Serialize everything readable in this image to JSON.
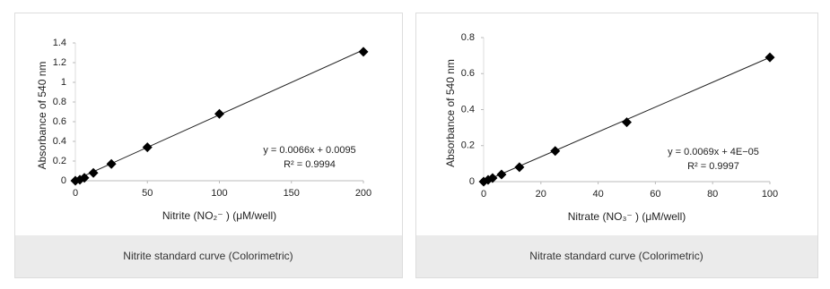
{
  "chart_data": [
    {
      "type": "scatter",
      "caption": "Nitrite standard curve (Colorimetric)",
      "x_label": "Nitrite (NO₂⁻ ) (μM/well)",
      "y_label": "Absorbance of 540 nm",
      "x": [
        0,
        3.125,
        6.25,
        12.5,
        25,
        50,
        100,
        200
      ],
      "values": [
        0,
        0.01,
        0.03,
        0.08,
        0.17,
        0.34,
        0.68,
        1.31
      ],
      "color": "#000000",
      "xlim": [
        0,
        200
      ],
      "xticks": [
        0,
        50,
        100,
        150,
        200
      ],
      "ylim": [
        0,
        1.4
      ],
      "yticks": [
        0,
        0.2,
        0.4,
        0.6,
        0.8,
        1,
        1.2,
        1.4
      ],
      "trendline": {
        "slope": 0.0066,
        "intercept": 0.0095,
        "label": "y = 0.0066x + 0.0095",
        "r2_label": "R² = 0.9994"
      }
    },
    {
      "type": "scatter",
      "caption": "Nitrate standard curve (Colorimetric)",
      "x_label": "Nitrate (NO₃⁻ ) (μM/well)",
      "y_label": "Absorbance of 540 nm",
      "x": [
        0,
        1.5625,
        3.125,
        6.25,
        12.5,
        25,
        50,
        100
      ],
      "values": [
        0,
        0.01,
        0.02,
        0.04,
        0.08,
        0.17,
        0.33,
        0.69
      ],
      "color": "#000000",
      "xlim": [
        0,
        100
      ],
      "xticks": [
        0,
        20,
        40,
        60,
        80,
        100
      ],
      "ylim": [
        0,
        0.8
      ],
      "yticks": [
        0,
        0.2,
        0.4,
        0.6,
        0.8
      ],
      "trendline": {
        "slope": 0.0069,
        "intercept": 4e-05,
        "label": "y = 0.0069x + 4E−05",
        "r2_label": "R² = 0.9997"
      }
    }
  ]
}
